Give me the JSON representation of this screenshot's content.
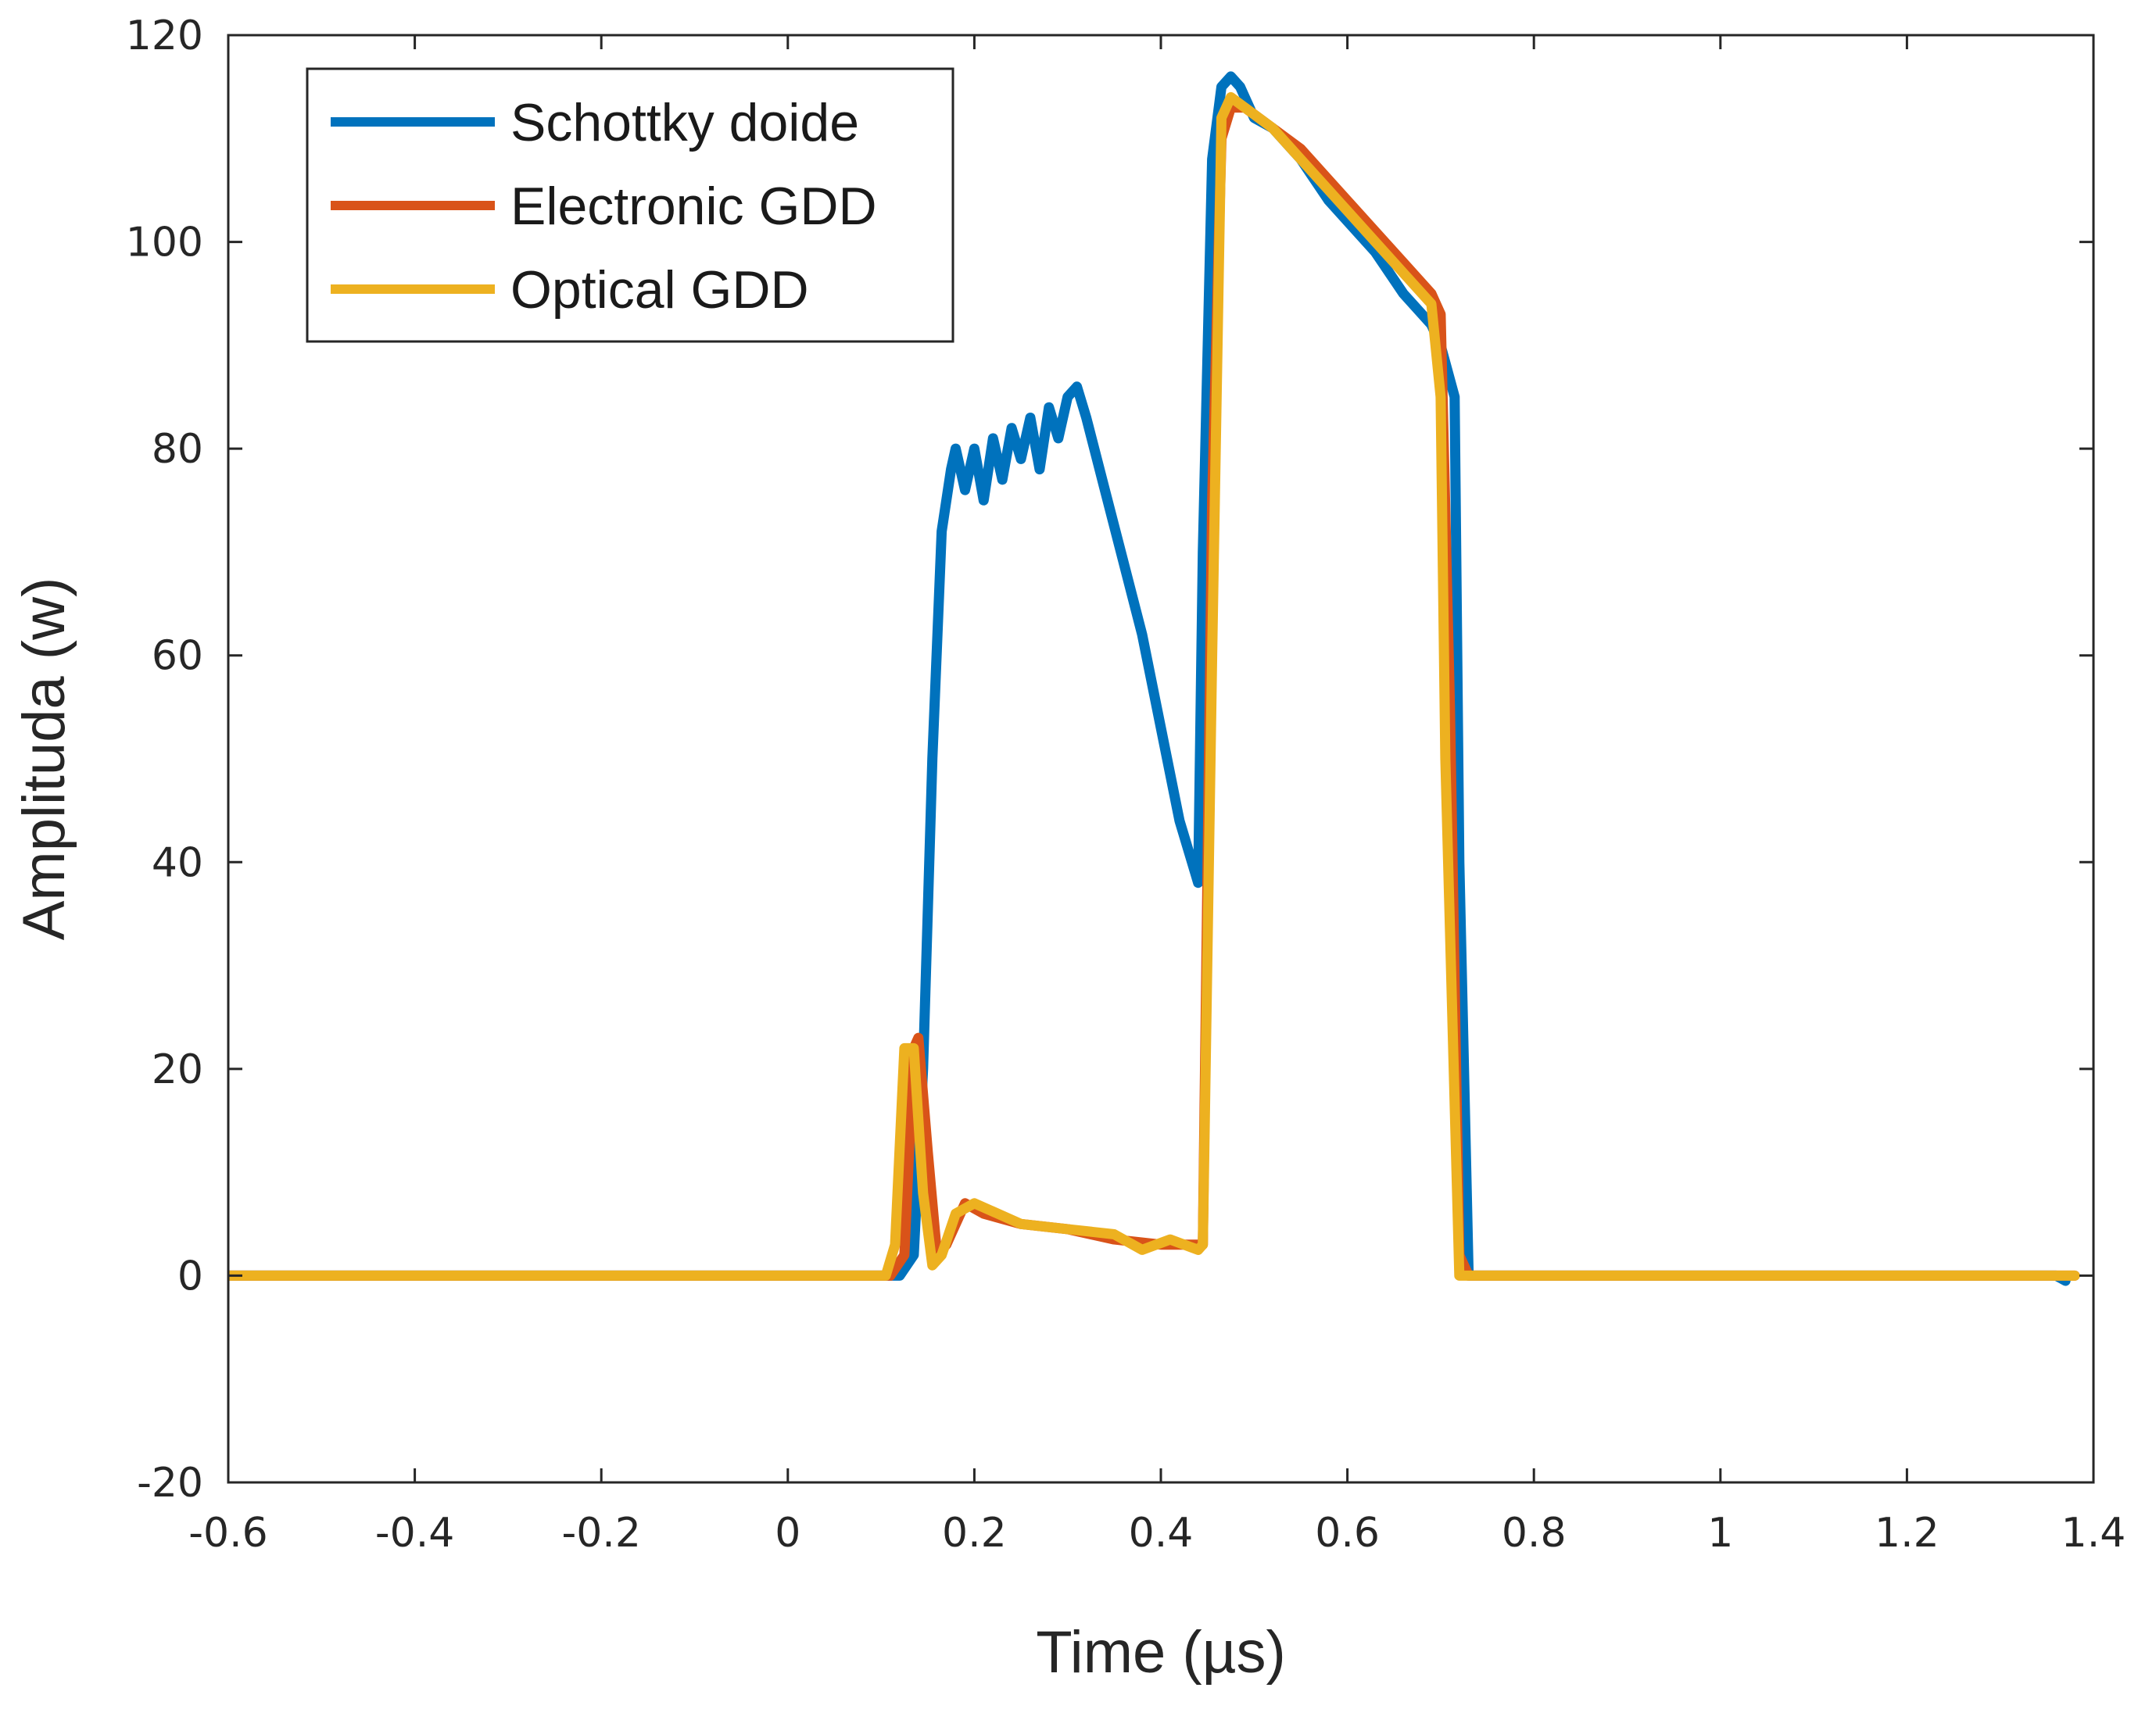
{
  "chart_data": {
    "type": "line",
    "title": "",
    "xlabel": "Time (µs)",
    "ylabel": "Amplituda (w)",
    "xlim": [
      -0.6,
      1.4
    ],
    "ylim": [
      -20,
      120
    ],
    "xticks": [
      -0.6,
      -0.4,
      -0.2,
      0,
      0.2,
      0.4,
      0.6,
      0.8,
      1,
      1.2,
      1.4
    ],
    "xtick_labels": [
      "-0.6",
      "-0.4",
      "-0.2",
      "0",
      "0.2",
      "0.4",
      "0.6",
      "0.8",
      "1",
      "1.2",
      "1.4"
    ],
    "yticks": [
      -20,
      0,
      20,
      40,
      60,
      80,
      100,
      120
    ],
    "ytick_labels": [
      "-20",
      "0",
      "20",
      "40",
      "60",
      "80",
      "100",
      "120"
    ],
    "grid": false,
    "legend_position": "top-left",
    "series": [
      {
        "name": "Schottky doide",
        "color": "#0072bd",
        "x": [
          -0.6,
          0.12,
          0.135,
          0.145,
          0.155,
          0.165,
          0.175,
          0.18,
          0.19,
          0.2,
          0.21,
          0.22,
          0.23,
          0.24,
          0.25,
          0.26,
          0.27,
          0.28,
          0.29,
          0.3,
          0.31,
          0.32,
          0.34,
          0.36,
          0.38,
          0.4,
          0.42,
          0.44,
          0.445,
          0.455,
          0.465,
          0.475,
          0.485,
          0.5,
          0.52,
          0.55,
          0.58,
          0.6,
          0.63,
          0.66,
          0.69,
          0.7,
          0.715,
          0.72,
          0.73,
          0.75,
          1.36,
          1.37
        ],
        "y": [
          0,
          0,
          2,
          20,
          50,
          72,
          78,
          80,
          76,
          80,
          75,
          81,
          77,
          82,
          79,
          83,
          78,
          84,
          81,
          85,
          86,
          83,
          76,
          69,
          62,
          53,
          44,
          38,
          70,
          108,
          115,
          116,
          115,
          112,
          111,
          108,
          104,
          102,
          99,
          95,
          92,
          90,
          85,
          40,
          0,
          0,
          0,
          -0.5
        ]
      },
      {
        "name": "Electronic GDD",
        "color": "#d95319",
        "x": [
          -0.6,
          0.11,
          0.125,
          0.135,
          0.14,
          0.15,
          0.16,
          0.17,
          0.19,
          0.21,
          0.25,
          0.3,
          0.35,
          0.4,
          0.43,
          0.445,
          0.455,
          0.465,
          0.475,
          0.49,
          0.52,
          0.55,
          0.58,
          0.6,
          0.63,
          0.66,
          0.69,
          0.7,
          0.71,
          0.72,
          0.73,
          1.38
        ],
        "y": [
          0,
          0,
          2,
          22,
          23,
          12,
          2,
          3,
          7,
          6,
          5,
          4.5,
          3.5,
          3,
          3,
          3,
          75,
          110,
          113,
          113,
          111,
          109,
          106,
          104,
          101,
          98,
          95,
          93,
          55,
          2,
          0,
          0
        ]
      },
      {
        "name": "Optical GDD",
        "color": "#edb120",
        "x": [
          -0.6,
          0.105,
          0.115,
          0.125,
          0.135,
          0.145,
          0.155,
          0.165,
          0.18,
          0.2,
          0.25,
          0.3,
          0.35,
          0.38,
          0.41,
          0.44,
          0.445,
          0.455,
          0.465,
          0.475,
          0.49,
          0.52,
          0.55,
          0.58,
          0.6,
          0.63,
          0.66,
          0.69,
          0.7,
          0.705,
          0.72,
          0.73,
          1.38
        ],
        "y": [
          0,
          0,
          3,
          22,
          22,
          8,
          1,
          2,
          6,
          7,
          5,
          4.5,
          4,
          2.5,
          3.5,
          2.5,
          3,
          60,
          112,
          114,
          113,
          111,
          108,
          105,
          103,
          100,
          97,
          94,
          85,
          50,
          0,
          0,
          0
        ]
      }
    ]
  }
}
